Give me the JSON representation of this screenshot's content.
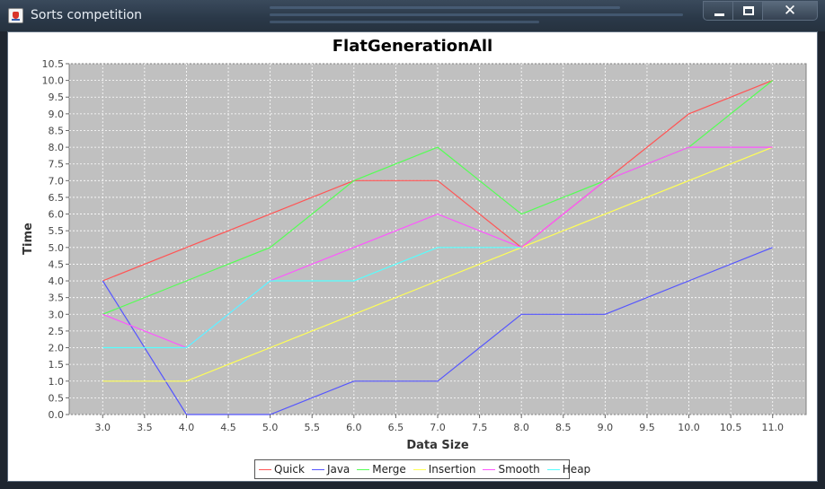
{
  "window": {
    "title": "Sorts competition",
    "controls": {
      "minimize_icon": "minimize-icon",
      "maximize_icon": "maximize-icon",
      "close_icon": "close-icon"
    }
  },
  "chart_data": {
    "type": "line",
    "title": "FlatGenerationAll",
    "xlabel": "Data Size",
    "ylabel": "Time",
    "xlim": [
      2.6,
      11.4
    ],
    "ylim": [
      0.0,
      10.5
    ],
    "x_ticks": [
      "3.0",
      "3.5",
      "4.0",
      "4.5",
      "5.0",
      "5.5",
      "6.0",
      "6.5",
      "7.0",
      "7.5",
      "8.0",
      "8.5",
      "9.0",
      "9.5",
      "10.0",
      "10.5",
      "11.0"
    ],
    "y_ticks": [
      "0.0",
      "0.5",
      "1.0",
      "1.5",
      "2.0",
      "2.5",
      "3.0",
      "3.5",
      "4.0",
      "4.5",
      "5.0",
      "5.5",
      "6.0",
      "6.5",
      "7.0",
      "7.5",
      "8.0",
      "8.5",
      "9.0",
      "9.5",
      "10.0",
      "10.5"
    ],
    "grid": true,
    "legend_position": "bottom",
    "x": [
      3,
      4,
      5,
      6,
      7,
      8,
      9,
      10,
      11
    ],
    "series": [
      {
        "name": "Quick",
        "color": "#ff5555",
        "points": [
          [
            3,
            4
          ],
          [
            4,
            5
          ],
          [
            5,
            6
          ],
          [
            6,
            7
          ],
          [
            7,
            7
          ],
          [
            8,
            5
          ],
          [
            9,
            7
          ],
          [
            10,
            9
          ],
          [
            11,
            10
          ]
        ]
      },
      {
        "name": "Java",
        "color": "#5555ff",
        "points": [
          [
            3,
            4
          ],
          [
            4,
            0
          ],
          [
            5,
            0
          ],
          [
            6,
            1
          ],
          [
            7,
            1
          ],
          [
            8,
            3
          ],
          [
            9,
            3
          ],
          [
            10,
            4
          ],
          [
            11,
            5
          ]
        ]
      },
      {
        "name": "Merge",
        "color": "#55ff55",
        "points": [
          [
            3,
            3
          ],
          [
            4,
            4
          ],
          [
            5,
            5
          ],
          [
            6,
            7
          ],
          [
            7,
            8
          ],
          [
            8,
            6
          ],
          [
            9,
            7
          ],
          [
            10,
            8
          ],
          [
            11,
            10
          ]
        ]
      },
      {
        "name": "Insertion",
        "color": "#ffff55",
        "points": [
          [
            3,
            1
          ],
          [
            4,
            1
          ],
          [
            5,
            2
          ],
          [
            6,
            3
          ],
          [
            7,
            4
          ],
          [
            8,
            5
          ],
          [
            9,
            6
          ],
          [
            10,
            7
          ],
          [
            11,
            8
          ]
        ]
      },
      {
        "name": "Smooth",
        "color": "#ff55ff",
        "points": [
          [
            3,
            3
          ],
          [
            4,
            2
          ],
          [
            5,
            4
          ],
          [
            6,
            5
          ],
          [
            7,
            6
          ],
          [
            8,
            5
          ],
          [
            9,
            7
          ],
          [
            10,
            8
          ],
          [
            11,
            8
          ]
        ]
      },
      {
        "name": "Heap",
        "color": "#55ffff",
        "points": [
          [
            3,
            2
          ],
          [
            4,
            2
          ],
          [
            5,
            4
          ],
          [
            6,
            4
          ],
          [
            7,
            5
          ],
          [
            8,
            5
          ]
        ]
      }
    ]
  }
}
